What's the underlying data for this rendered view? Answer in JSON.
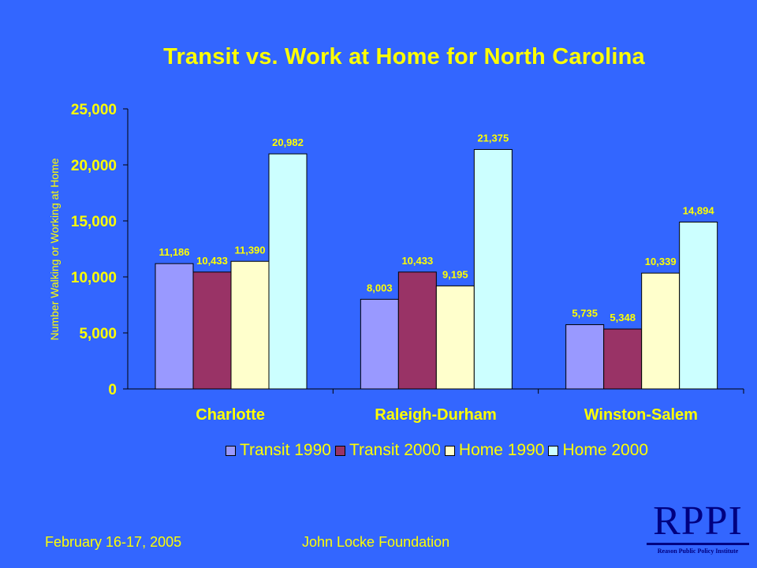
{
  "slide": {
    "footer_date": "February 16-17, 2005",
    "footer_org": "John Locke Foundation",
    "logo_text": "RPPI",
    "logo_caption": "Reason Public Policy Institute"
  },
  "colors": {
    "background": "#3366FF",
    "text": "#FFFF00",
    "transit_1990": "#9999FF",
    "transit_2000": "#993366",
    "home_1990": "#FFFFCC",
    "home_2000": "#CCFFFF",
    "logo": "#000080"
  },
  "chart_data": {
    "type": "bar",
    "title": "Transit vs. Work at Home for North Carolina",
    "ylabel": "Number Walking or Working at Home",
    "xlabel": "",
    "ylim": [
      0,
      25000
    ],
    "yticks": [
      0,
      5000,
      10000,
      15000,
      20000,
      25000
    ],
    "ytick_labels": [
      "0",
      "5,000",
      "10,000",
      "15,000",
      "20,000",
      "25,000"
    ],
    "categories": [
      "Charlotte",
      "Raleigh-Durham",
      "Winston-Salem"
    ],
    "series": [
      {
        "name": "Transit 1990",
        "color": "#9999FF",
        "values": [
          11186,
          8003,
          5735
        ],
        "labels": [
          "11,186",
          "8,003",
          "5,735"
        ]
      },
      {
        "name": "Transit 2000",
        "color": "#993366",
        "values": [
          10433,
          10433,
          5348
        ],
        "labels": [
          "10,433",
          "10,433",
          "5,348"
        ]
      },
      {
        "name": "Home 1990",
        "color": "#FFFFCC",
        "values": [
          11390,
          9195,
          10339
        ],
        "labels": [
          "11,390",
          "9,195",
          "10,339"
        ]
      },
      {
        "name": "Home 2000",
        "color": "#CCFFFF",
        "values": [
          20982,
          21375,
          14894
        ],
        "labels": [
          "20,982",
          "21,375",
          "14,894"
        ]
      }
    ],
    "legend": "bottom",
    "grid": false
  }
}
